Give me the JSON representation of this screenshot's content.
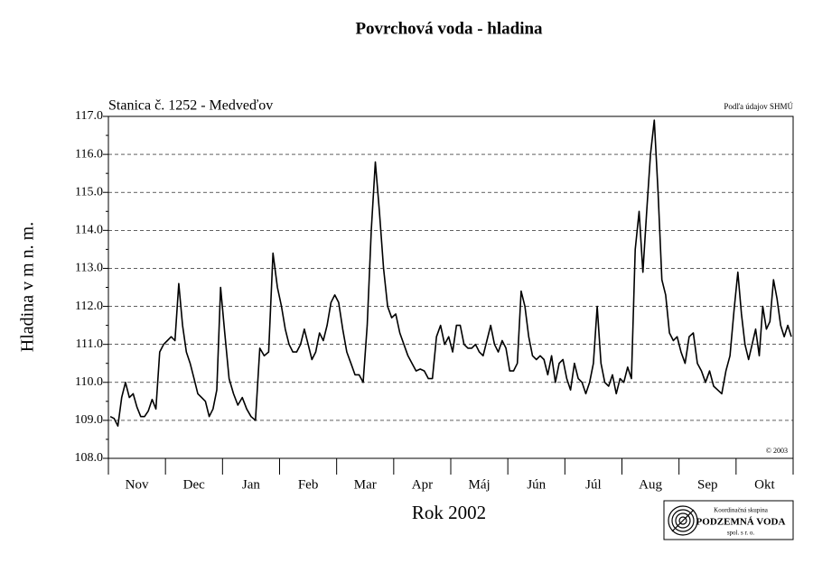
{
  "chart_data": {
    "type": "line",
    "title": "Povrchová voda - hladina",
    "subtitle": "Stanica č. 1252 - Medveďov",
    "source": "Podľa údajov SHMÚ",
    "copyright": "© 2003",
    "y_label": "Hladina v m n. m.",
    "x_label": "Rok 2002",
    "logo": {
      "line1": "Koordinačná skupina",
      "line2": "PODZEMNÁ VODA",
      "line3": "spol. s r. o."
    },
    "color": "#000000",
    "grid": true,
    "ylim": [
      108,
      117
    ],
    "yticks": [
      {
        "value": 108,
        "label": "108.0"
      },
      {
        "value": 109,
        "label": "109.0"
      },
      {
        "value": 110,
        "label": "110.0"
      },
      {
        "value": 111,
        "label": "111.0"
      },
      {
        "value": 112,
        "label": "112.0"
      },
      {
        "value": 113,
        "label": "113.0"
      },
      {
        "value": 114,
        "label": "114.0"
      },
      {
        "value": 115,
        "label": "115.0"
      },
      {
        "value": 116,
        "label": "116.0"
      },
      {
        "value": 117,
        "label": "117.0"
      }
    ],
    "categories": [
      "Nov",
      "Dec",
      "Jan",
      "Feb",
      "Mar",
      "Apr",
      "Máj",
      "Jún",
      "Júl",
      "Aug",
      "Sep",
      "Okt"
    ],
    "values": [
      [
        109.1,
        109.05,
        108.85,
        109.6,
        110.0,
        109.6,
        109.7,
        109.35,
        109.1,
        109.1,
        109.25,
        109.55,
        109.3,
        110.8,
        111.0
      ],
      [
        111.1,
        111.2,
        111.1,
        112.6,
        111.5,
        110.8,
        110.5,
        110.1,
        109.7,
        109.6,
        109.5,
        109.1,
        109.3,
        109.8,
        112.5
      ],
      [
        111.3,
        110.1,
        109.7,
        109.4,
        109.6,
        109.3,
        109.1,
        109.0,
        110.9,
        110.7,
        110.8,
        113.4,
        112.5
      ],
      [
        112.0,
        111.4,
        111.0,
        110.8,
        110.8,
        111.0,
        111.4,
        111.0,
        110.6,
        110.8,
        111.3,
        111.1,
        111.5,
        112.1,
        112.3
      ],
      [
        112.1,
        111.4,
        110.8,
        110.5,
        110.2,
        110.2,
        110.0,
        111.5,
        114.0,
        115.8,
        114.5,
        113.0,
        112.0,
        111.7
      ],
      [
        111.8,
        111.3,
        111.0,
        110.7,
        110.5,
        110.3,
        110.35,
        110.3,
        110.1,
        110.1,
        111.2,
        111.5,
        111.0,
        111.2
      ],
      [
        110.8,
        111.5,
        111.5,
        111.0,
        110.9,
        110.9,
        111.0,
        110.8,
        110.7,
        111.1,
        111.5,
        111.0,
        110.8,
        111.1,
        110.9
      ],
      [
        110.3,
        110.3,
        110.5,
        112.4,
        112.0,
        111.2,
        110.7,
        110.6,
        110.7,
        110.6,
        110.2,
        110.7,
        110.0,
        110.5,
        110.6
      ],
      [
        110.1,
        109.8,
        110.5,
        110.1,
        110.0,
        109.7,
        110.0,
        110.5,
        112.0,
        110.5,
        110.0,
        109.9,
        110.2,
        109.7,
        110.1
      ],
      [
        110.0,
        110.4,
        110.1,
        113.5,
        114.5,
        112.9,
        114.5,
        116.0,
        116.9,
        115.0,
        112.7,
        112.3,
        111.3,
        111.1,
        111.2
      ],
      [
        110.8,
        110.5,
        111.2,
        111.3,
        110.5,
        110.3,
        110.0,
        110.3,
        109.9,
        109.8,
        109.7,
        110.3,
        110.7,
        111.9
      ],
      [
        112.9,
        111.8,
        111.0,
        110.6,
        111.0,
        111.4,
        110.7,
        112.0,
        111.4,
        111.6,
        112.7,
        112.2,
        111.5,
        111.2,
        111.5,
        111.2
      ]
    ]
  }
}
